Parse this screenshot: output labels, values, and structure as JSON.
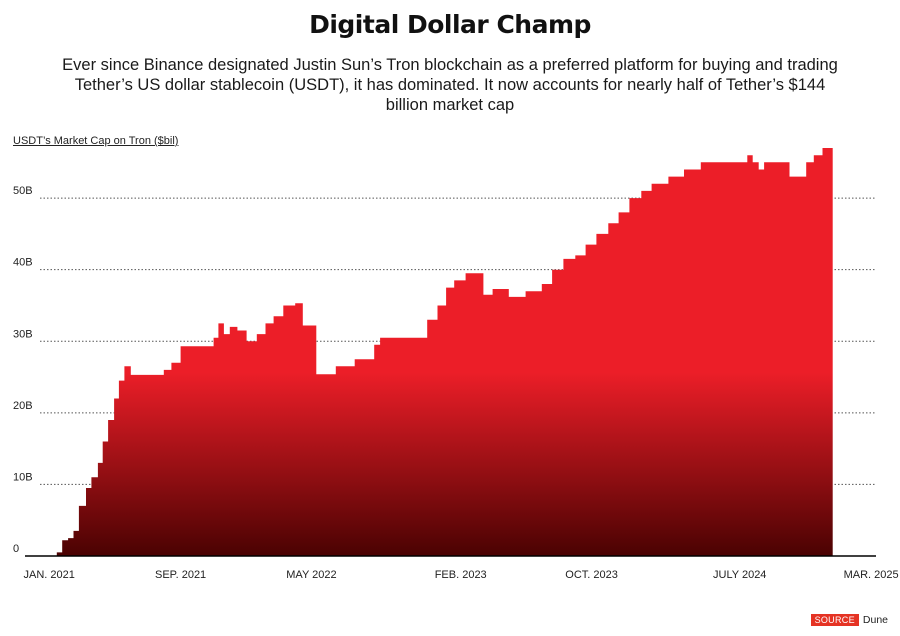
{
  "title": "Digital Dollar Champ",
  "subtitle": "Ever since Binance designated Justin Sun’s Tron blockchain as a preferred platform for buying and trading Tether’s US dollar stablecoin (USDT), it has dominated. It now accounts for nearly half of Tether’s $144 billion market cap",
  "source": {
    "label": "SOURCE",
    "name": "Dune"
  },
  "colors": {
    "fill_top": "#ec1e28",
    "fill_bottom": "#4a0202",
    "axis": "#000000",
    "grid": "#555555"
  },
  "chart_data": {
    "type": "area",
    "title": "Digital Dollar Champ",
    "ylabel": "USDT’s Market Cap on Tron ($bil)",
    "xlabel": "",
    "ylim": [
      0,
      57
    ],
    "grid": "horizontal dotted",
    "y_ticks": [
      {
        "value": 0,
        "label": "0"
      },
      {
        "value": 10,
        "label": "10B"
      },
      {
        "value": 20,
        "label": "20B"
      },
      {
        "value": 30,
        "label": "30B"
      },
      {
        "value": 40,
        "label": "40B"
      },
      {
        "value": 50,
        "label": "50B"
      }
    ],
    "x_range": [
      "2020-12-15",
      "2025-03-10"
    ],
    "x_ticks": [
      {
        "date": "2021-01-01",
        "label": "JAN. 2021"
      },
      {
        "date": "2021-09-01",
        "label": "SEP. 2021"
      },
      {
        "date": "2022-05-01",
        "label": "MAY 2022"
      },
      {
        "date": "2023-02-01",
        "label": "FEB. 2023"
      },
      {
        "date": "2023-10-01",
        "label": "OCT. 2023"
      },
      {
        "date": "2024-07-01",
        "label": "JULY 2024"
      },
      {
        "date": "2025-03-01",
        "label": "MAR. 2025"
      }
    ],
    "series": [
      {
        "values": [
          [
            "2021-01-15",
            0.5
          ],
          [
            "2021-01-25",
            2.2
          ],
          [
            "2021-02-05",
            2.5
          ],
          [
            "2021-02-15",
            3.5
          ],
          [
            "2021-02-25",
            7.0
          ],
          [
            "2021-03-10",
            9.5
          ],
          [
            "2021-03-20",
            11.0
          ],
          [
            "2021-04-01",
            13.0
          ],
          [
            "2021-04-10",
            16.0
          ],
          [
            "2021-04-20",
            19.0
          ],
          [
            "2021-05-01",
            22.0
          ],
          [
            "2021-05-10",
            24.5
          ],
          [
            "2021-05-20",
            26.5
          ],
          [
            "2021-06-01",
            25.3
          ],
          [
            "2021-07-15",
            25.3
          ],
          [
            "2021-08-01",
            26.0
          ],
          [
            "2021-08-15",
            27.0
          ],
          [
            "2021-09-01",
            29.3
          ],
          [
            "2021-10-15",
            29.3
          ],
          [
            "2021-11-01",
            30.5
          ],
          [
            "2021-11-10",
            32.5
          ],
          [
            "2021-11-20",
            31.0
          ],
          [
            "2021-12-01",
            32.0
          ],
          [
            "2021-12-15",
            31.5
          ],
          [
            "2022-01-01",
            30.0
          ],
          [
            "2022-01-20",
            31.0
          ],
          [
            "2022-02-05",
            32.5
          ],
          [
            "2022-02-20",
            33.5
          ],
          [
            "2022-03-10",
            35.0
          ],
          [
            "2022-04-01",
            35.3
          ],
          [
            "2022-04-15",
            32.2
          ],
          [
            "2022-05-10",
            25.4
          ],
          [
            "2022-06-15",
            26.5
          ],
          [
            "2022-07-20",
            27.5
          ],
          [
            "2022-08-25",
            29.5
          ],
          [
            "2022-09-05",
            30.5
          ],
          [
            "2022-11-01",
            30.5
          ],
          [
            "2022-12-01",
            33.0
          ],
          [
            "2022-12-20",
            35.0
          ],
          [
            "2023-01-05",
            37.5
          ],
          [
            "2023-01-20",
            38.5
          ],
          [
            "2023-02-10",
            39.5
          ],
          [
            "2023-03-15",
            36.5
          ],
          [
            "2023-04-01",
            37.3
          ],
          [
            "2023-05-01",
            36.2
          ],
          [
            "2023-06-01",
            37.0
          ],
          [
            "2023-07-01",
            38.0
          ],
          [
            "2023-07-20",
            40.0
          ],
          [
            "2023-08-10",
            41.5
          ],
          [
            "2023-09-01",
            42.0
          ],
          [
            "2023-09-20",
            43.5
          ],
          [
            "2023-10-10",
            45.0
          ],
          [
            "2023-11-01",
            46.5
          ],
          [
            "2023-11-20",
            48.0
          ],
          [
            "2023-12-10",
            50.0
          ],
          [
            "2024-01-01",
            51.0
          ],
          [
            "2024-01-20",
            52.0
          ],
          [
            "2024-02-20",
            53.0
          ],
          [
            "2024-03-20",
            54.0
          ],
          [
            "2024-04-20",
            55.0
          ],
          [
            "2024-07-15",
            56.0
          ],
          [
            "2024-07-25",
            55.0
          ],
          [
            "2024-08-05",
            54.0
          ],
          [
            "2024-08-15",
            55.0
          ],
          [
            "2024-10-01",
            53.0
          ],
          [
            "2024-11-01",
            55.0
          ],
          [
            "2024-11-15",
            56.0
          ],
          [
            "2024-12-01",
            57.0
          ],
          [
            "2024-12-20",
            57.0
          ]
        ]
      }
    ]
  }
}
